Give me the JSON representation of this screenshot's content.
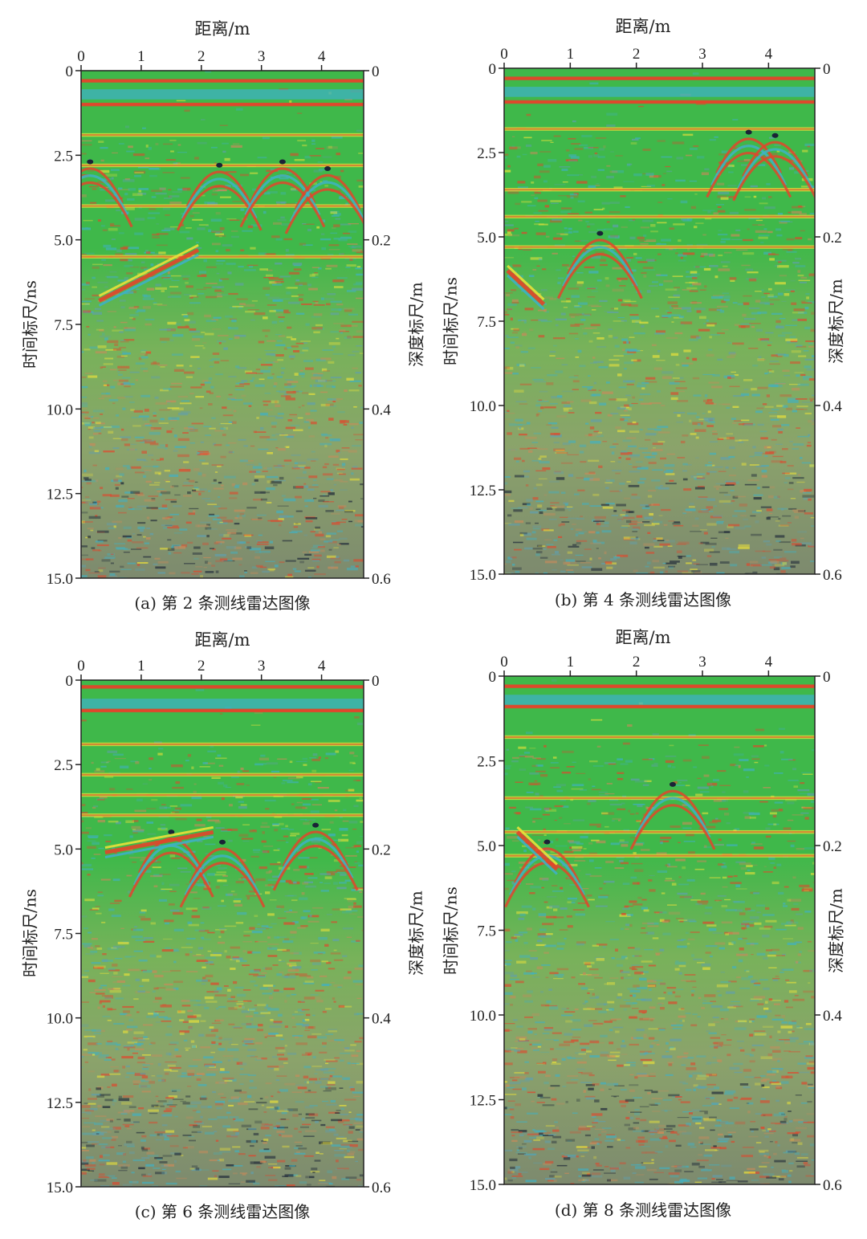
{
  "chart_data": [
    {
      "type": "heatmap",
      "caption": "(a) 第 2 条测线雷达图像",
      "xlabel": "距离/m",
      "ylabel_left": "时间标尺/ns",
      "ylabel_right": "深度标尺/m",
      "xlim": [
        0,
        4.7
      ],
      "x_ticks": [
        "0",
        "1",
        "2",
        "3",
        "4"
      ],
      "ylim_left": [
        0,
        15.0
      ],
      "y_ticks_left": [
        "0",
        "2.5",
        "5.0",
        "7.5",
        "10.0",
        "12.5",
        "15.0"
      ],
      "y_ticks_right": [
        "0",
        "0.2",
        "0.4",
        "0.6"
      ],
      "depth_per_ns": 0.04,
      "time_reflectors_ns": [
        0.3,
        1.0,
        1.9,
        2.8,
        4.0,
        5.5
      ],
      "hyperbola_apices": [
        {
          "x_m": 0.15,
          "t_ns": 2.6
        },
        {
          "x_m": 2.3,
          "t_ns": 2.7
        },
        {
          "x_m": 3.35,
          "t_ns": 2.6
        },
        {
          "x_m": 4.1,
          "t_ns": 2.8
        }
      ],
      "dipping_reflector": {
        "from": [
          0.3,
          6.8
        ],
        "to": [
          1.95,
          5.3
        ]
      }
    },
    {
      "type": "heatmap",
      "caption": "(b) 第 4 条测线雷达图像",
      "xlabel": "距离/m",
      "ylabel_left": "时间标尺/ns",
      "ylabel_right": "深度标尺/m",
      "xlim": [
        0,
        4.7
      ],
      "x_ticks": [
        "0",
        "1",
        "2",
        "3",
        "4"
      ],
      "ylim_left": [
        0,
        15.0
      ],
      "y_ticks_left": [
        "0",
        "2.5",
        "5.0",
        "7.5",
        "10.0",
        "12.5",
        "15.0"
      ],
      "y_ticks_right": [
        "0",
        "0.2",
        "0.4",
        "0.6"
      ],
      "depth_per_ns": 0.04,
      "time_reflectors_ns": [
        0.3,
        1.0,
        1.8,
        3.6,
        4.4,
        5.3
      ],
      "hyperbola_apices": [
        {
          "x_m": 1.45,
          "t_ns": 4.8
        },
        {
          "x_m": 3.7,
          "t_ns": 1.8
        },
        {
          "x_m": 4.1,
          "t_ns": 1.9
        }
      ],
      "dipping_reflector": {
        "from": [
          0.05,
          6.0
        ],
        "to": [
          0.6,
          7.0
        ]
      }
    },
    {
      "type": "heatmap",
      "caption": "(c) 第 6 条测线雷达图像",
      "xlabel": "距离/m",
      "ylabel_left": "时间标尺/ns",
      "ylabel_right": "深度标尺/m",
      "xlim": [
        0,
        4.7
      ],
      "x_ticks": [
        "0",
        "1",
        "2",
        "3",
        "4"
      ],
      "ylim_left": [
        0,
        15.0
      ],
      "y_ticks_left": [
        "0",
        "2.5",
        "5.0",
        "7.5",
        "10.0",
        "12.5",
        "15.0"
      ],
      "y_ticks_right": [
        "0",
        "0.2",
        "0.4",
        "0.6"
      ],
      "depth_per_ns": 0.04,
      "time_reflectors_ns": [
        0.2,
        0.9,
        1.9,
        2.8,
        3.4,
        4.0
      ],
      "hyperbola_apices": [
        {
          "x_m": 1.5,
          "t_ns": 4.4
        },
        {
          "x_m": 2.35,
          "t_ns": 4.7
        },
        {
          "x_m": 3.9,
          "t_ns": 4.2
        }
      ],
      "dipping_reflector": {
        "from": [
          0.4,
          5.1
        ],
        "to": [
          2.2,
          4.5
        ]
      }
    },
    {
      "type": "heatmap",
      "caption": "(d) 第 8 条测线雷达图像",
      "xlabel": "距离/m",
      "ylabel_left": "时间标尺/ns",
      "ylabel_right": "深度标尺/m",
      "xlim": [
        0,
        4.7
      ],
      "x_ticks": [
        "0",
        "1",
        "2",
        "3",
        "4"
      ],
      "ylim_left": [
        0,
        15.0
      ],
      "y_ticks_left": [
        "0",
        "2.5",
        "5.0",
        "7.5",
        "10.0",
        "12.5",
        "15.0"
      ],
      "y_ticks_right": [
        "0",
        "0.2",
        "0.4",
        "0.6"
      ],
      "depth_per_ns": 0.04,
      "time_reflectors_ns": [
        0.3,
        0.9,
        1.8,
        3.6,
        4.6,
        5.3
      ],
      "hyperbola_apices": [
        {
          "x_m": 0.65,
          "t_ns": 4.8
        },
        {
          "x_m": 2.55,
          "t_ns": 3.1
        }
      ],
      "dipping_reflector": {
        "from": [
          0.2,
          4.6
        ],
        "to": [
          0.8,
          5.7
        ]
      }
    }
  ],
  "palette": {
    "background": "#3fb84a",
    "cyan": "#3fb1c4",
    "yellow": "#eae13a",
    "red": "#e2452b",
    "dark": "#1a2336",
    "noise_base": "#8ba36b"
  }
}
